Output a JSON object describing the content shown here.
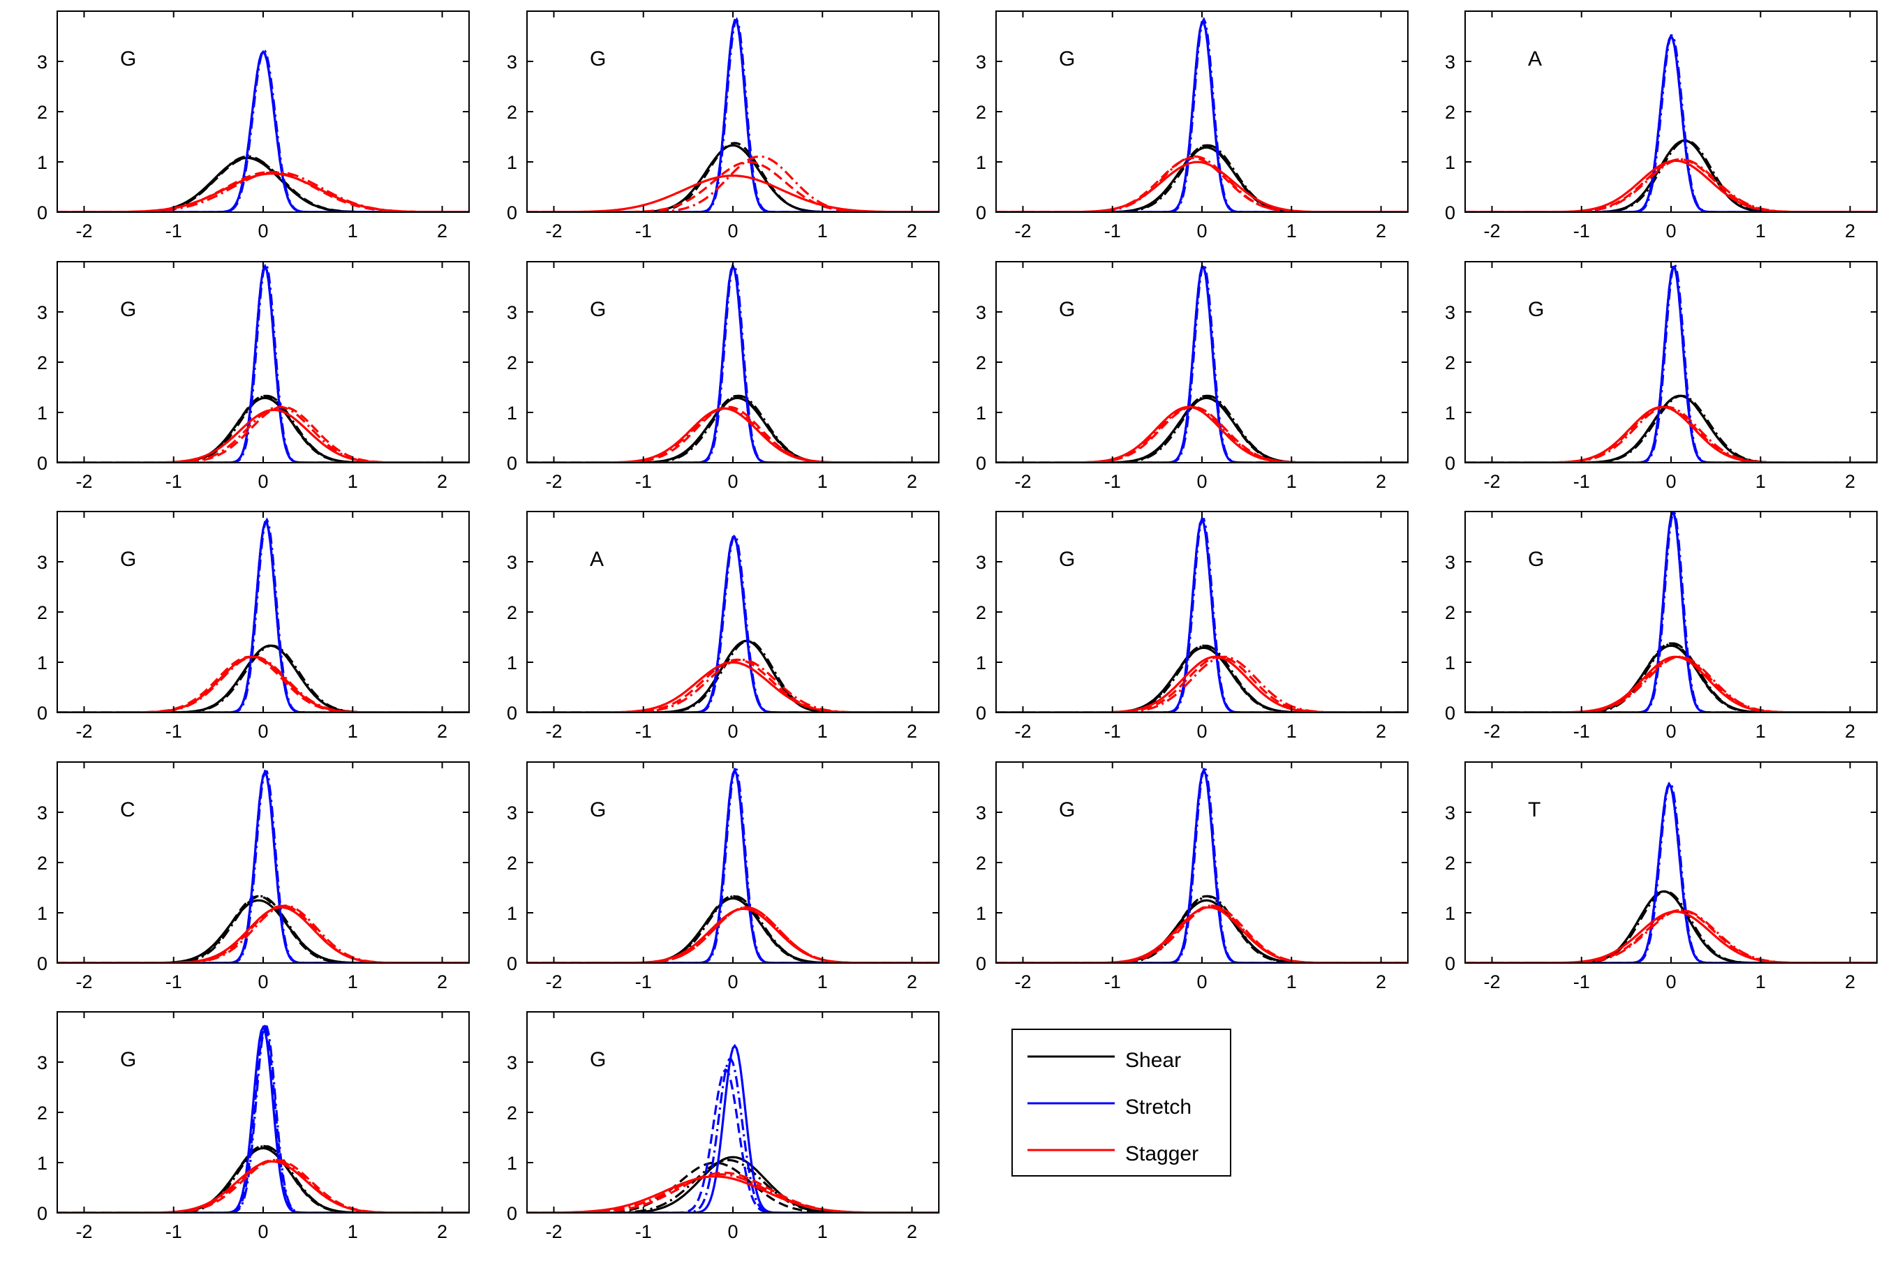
{
  "colors": {
    "shear": "#000000",
    "stretch": "#0000ff",
    "stagger": "#ff0000"
  },
  "legend": {
    "placement": "bottom-right",
    "entries": [
      {
        "label": "Shear",
        "color": "#000000"
      },
      {
        "label": "Stretch",
        "color": "#0000ff"
      },
      {
        "label": "Stagger",
        "color": "#ff0000"
      }
    ]
  },
  "axes": {
    "xlim": [
      -2.3,
      2.3
    ],
    "ylim": [
      0,
      4
    ],
    "xticks": [
      "-2",
      "-1",
      "0",
      "1",
      "2"
    ],
    "yticks": [
      "0",
      "1",
      "2",
      "3"
    ],
    "grid": false,
    "line_styles": [
      "solid",
      "dashed",
      "dash-dot"
    ]
  },
  "chart_data": [
    {
      "type": "line",
      "label": "G",
      "series": [
        {
          "name": "Shear",
          "mu": [
            -0.18,
            -0.16,
            -0.17
          ],
          "sigma": [
            0.37,
            0.37,
            0.36
          ]
        },
        {
          "name": "Stretch",
          "mu": [
            0.0,
            0.0,
            0.01
          ],
          "sigma": [
            0.125,
            0.125,
            0.124
          ]
        },
        {
          "name": "Stagger",
          "mu": [
            0.1,
            0.08,
            0.15
          ],
          "sigma": [
            0.52,
            0.5,
            0.5
          ]
        }
      ]
    },
    {
      "type": "line",
      "label": "G",
      "series": [
        {
          "name": "Shear",
          "mu": [
            0.0,
            0.02,
            0.0
          ],
          "sigma": [
            0.3,
            0.29,
            0.3
          ]
        },
        {
          "name": "Stretch",
          "mu": [
            0.03,
            0.03,
            0.04
          ],
          "sigma": [
            0.104,
            0.104,
            0.104
          ]
        },
        {
          "name": "Stagger",
          "mu": [
            0.0,
            0.18,
            0.3
          ],
          "sigma": [
            0.55,
            0.4,
            0.36
          ]
        }
      ]
    },
    {
      "type": "line",
      "label": "G",
      "series": [
        {
          "name": "Shear",
          "mu": [
            0.05,
            0.05,
            0.07
          ],
          "sigma": [
            0.31,
            0.3,
            0.3
          ]
        },
        {
          "name": "Stretch",
          "mu": [
            0.01,
            0.01,
            0.02
          ],
          "sigma": [
            0.105,
            0.105,
            0.104
          ]
        },
        {
          "name": "Stagger",
          "mu": [
            -0.05,
            -0.1,
            -0.08
          ],
          "sigma": [
            0.4,
            0.37,
            0.36
          ]
        }
      ]
    },
    {
      "type": "line",
      "label": "A",
      "series": [
        {
          "name": "Shear",
          "mu": [
            0.15,
            0.15,
            0.17
          ],
          "sigma": [
            0.28,
            0.28,
            0.28
          ]
        },
        {
          "name": "Stretch",
          "mu": [
            0.0,
            0.0,
            0.01
          ],
          "sigma": [
            0.114,
            0.114,
            0.113
          ]
        },
        {
          "name": "Stagger",
          "mu": [
            0.05,
            0.1,
            0.12
          ],
          "sigma": [
            0.39,
            0.38,
            0.38
          ]
        }
      ]
    },
    {
      "type": "line",
      "label": "G",
      "series": [
        {
          "name": "Shear",
          "mu": [
            0.02,
            0.02,
            0.04
          ],
          "sigma": [
            0.31,
            0.3,
            0.3
          ]
        },
        {
          "name": "Stretch",
          "mu": [
            0.02,
            0.02,
            0.03
          ],
          "sigma": [
            0.102,
            0.102,
            0.101
          ]
        },
        {
          "name": "Stagger",
          "mu": [
            0.12,
            0.22,
            0.18
          ],
          "sigma": [
            0.38,
            0.36,
            0.36
          ]
        }
      ]
    },
    {
      "type": "line",
      "label": "G",
      "series": [
        {
          "name": "Shear",
          "mu": [
            0.05,
            0.05,
            0.07
          ],
          "sigma": [
            0.31,
            0.3,
            0.3
          ]
        },
        {
          "name": "Stretch",
          "mu": [
            0.0,
            0.0,
            0.01
          ],
          "sigma": [
            0.102,
            0.102,
            0.101
          ]
        },
        {
          "name": "Stagger",
          "mu": [
            -0.1,
            -0.05,
            -0.08
          ],
          "sigma": [
            0.37,
            0.36,
            0.37
          ]
        }
      ]
    },
    {
      "type": "line",
      "label": "G",
      "series": [
        {
          "name": "Shear",
          "mu": [
            0.05,
            0.05,
            0.07
          ],
          "sigma": [
            0.31,
            0.3,
            0.3
          ]
        },
        {
          "name": "Stretch",
          "mu": [
            0.01,
            0.01,
            0.02
          ],
          "sigma": [
            0.102,
            0.102,
            0.101
          ]
        },
        {
          "name": "Stagger",
          "mu": [
            -0.15,
            -0.1,
            -0.12
          ],
          "sigma": [
            0.36,
            0.36,
            0.36
          ]
        }
      ]
    },
    {
      "type": "line",
      "label": "G",
      "series": [
        {
          "name": "Shear",
          "mu": [
            0.1,
            0.1,
            0.12
          ],
          "sigma": [
            0.3,
            0.3,
            0.3
          ]
        },
        {
          "name": "Stretch",
          "mu": [
            0.03,
            0.03,
            0.04
          ],
          "sigma": [
            0.102,
            0.102,
            0.101
          ]
        },
        {
          "name": "Stagger",
          "mu": [
            -0.1,
            -0.08,
            -0.05
          ],
          "sigma": [
            0.36,
            0.36,
            0.36
          ]
        }
      ]
    },
    {
      "type": "line",
      "label": "G",
      "series": [
        {
          "name": "Shear",
          "mu": [
            0.08,
            0.08,
            0.1
          ],
          "sigma": [
            0.3,
            0.3,
            0.3
          ]
        },
        {
          "name": "Stretch",
          "mu": [
            0.03,
            0.03,
            0.04
          ],
          "sigma": [
            0.105,
            0.105,
            0.104
          ]
        },
        {
          "name": "Stagger",
          "mu": [
            -0.12,
            -0.15,
            -0.1
          ],
          "sigma": [
            0.36,
            0.36,
            0.36
          ]
        }
      ]
    },
    {
      "type": "line",
      "label": "A",
      "series": [
        {
          "name": "Shear",
          "mu": [
            0.15,
            0.15,
            0.17
          ],
          "sigma": [
            0.28,
            0.28,
            0.28
          ]
        },
        {
          "name": "Stretch",
          "mu": [
            0.01,
            0.01,
            0.02
          ],
          "sigma": [
            0.114,
            0.114,
            0.113
          ]
        },
        {
          "name": "Stagger",
          "mu": [
            0.0,
            0.05,
            0.1
          ],
          "sigma": [
            0.4,
            0.38,
            0.38
          ]
        }
      ]
    },
    {
      "type": "line",
      "label": "G",
      "series": [
        {
          "name": "Shear",
          "mu": [
            0.02,
            0.02,
            0.04
          ],
          "sigma": [
            0.31,
            0.3,
            0.3
          ]
        },
        {
          "name": "Stretch",
          "mu": [
            0.0,
            0.0,
            0.01
          ],
          "sigma": [
            0.104,
            0.104,
            0.103
          ]
        },
        {
          "name": "Stagger",
          "mu": [
            0.15,
            0.2,
            0.25
          ],
          "sigma": [
            0.36,
            0.36,
            0.36
          ]
        }
      ]
    },
    {
      "type": "line",
      "label": "G",
      "series": [
        {
          "name": "Shear",
          "mu": [
            0.0,
            0.0,
            0.02
          ],
          "sigma": [
            0.3,
            0.29,
            0.29
          ]
        },
        {
          "name": "Stretch",
          "mu": [
            0.02,
            0.02,
            0.03
          ],
          "sigma": [
            0.1,
            0.1,
            0.1
          ]
        },
        {
          "name": "Stagger",
          "mu": [
            0.05,
            0.08,
            0.1
          ],
          "sigma": [
            0.36,
            0.36,
            0.36
          ]
        }
      ]
    },
    {
      "type": "line",
      "label": "C",
      "series": [
        {
          "name": "Shear",
          "mu": [
            -0.05,
            -0.05,
            -0.03
          ],
          "sigma": [
            0.32,
            0.3,
            0.3
          ]
        },
        {
          "name": "Stretch",
          "mu": [
            0.02,
            0.02,
            0.03
          ],
          "sigma": [
            0.105,
            0.105,
            0.104
          ]
        },
        {
          "name": "Stagger",
          "mu": [
            0.2,
            0.22,
            0.25
          ],
          "sigma": [
            0.36,
            0.35,
            0.35
          ]
        }
      ]
    },
    {
      "type": "line",
      "label": "G",
      "series": [
        {
          "name": "Shear",
          "mu": [
            0.0,
            0.0,
            0.02
          ],
          "sigma": [
            0.31,
            0.3,
            0.3
          ]
        },
        {
          "name": "Stretch",
          "mu": [
            0.02,
            0.02,
            0.03
          ],
          "sigma": [
            0.104,
            0.104,
            0.103
          ]
        },
        {
          "name": "Stagger",
          "mu": [
            0.12,
            0.15,
            0.15
          ],
          "sigma": [
            0.37,
            0.36,
            0.36
          ]
        }
      ]
    },
    {
      "type": "line",
      "label": "G",
      "series": [
        {
          "name": "Shear",
          "mu": [
            0.05,
            0.05,
            0.07
          ],
          "sigma": [
            0.32,
            0.3,
            0.3
          ]
        },
        {
          "name": "Stretch",
          "mu": [
            0.02,
            0.02,
            0.03
          ],
          "sigma": [
            0.104,
            0.104,
            0.103
          ]
        },
        {
          "name": "Stagger",
          "mu": [
            0.08,
            0.12,
            0.1
          ],
          "sigma": [
            0.36,
            0.35,
            0.35
          ]
        }
      ]
    },
    {
      "type": "line",
      "label": "T",
      "series": [
        {
          "name": "Shear",
          "mu": [
            -0.08,
            -0.08,
            -0.06
          ],
          "sigma": [
            0.28,
            0.28,
            0.28
          ]
        },
        {
          "name": "Stretch",
          "mu": [
            -0.02,
            -0.02,
            -0.01
          ],
          "sigma": [
            0.112,
            0.112,
            0.111
          ]
        },
        {
          "name": "Stagger",
          "mu": [
            0.05,
            0.1,
            0.12
          ],
          "sigma": [
            0.39,
            0.38,
            0.38
          ]
        }
      ]
    },
    {
      "type": "line",
      "label": "G",
      "series": [
        {
          "name": "Shear",
          "mu": [
            0.0,
            0.0,
            0.02
          ],
          "sigma": [
            0.31,
            0.3,
            0.3
          ]
        },
        {
          "name": "Stretch",
          "mu": [
            0.0,
            0.02,
            0.03
          ],
          "sigma": [
            0.108,
            0.108,
            0.107
          ]
        },
        {
          "name": "Stagger",
          "mu": [
            0.1,
            0.15,
            0.12
          ],
          "sigma": [
            0.39,
            0.38,
            0.38
          ]
        }
      ]
    },
    {
      "type": "line",
      "label": "G",
      "series": [
        {
          "name": "Shear",
          "mu": [
            0.0,
            -0.2,
            -0.05
          ],
          "sigma": [
            0.36,
            0.4,
            0.38
          ]
        },
        {
          "name": "Stretch",
          "mu": [
            0.02,
            -0.08,
            -0.03
          ],
          "sigma": [
            0.12,
            0.14,
            0.13
          ]
        },
        {
          "name": "Stagger",
          "mu": [
            -0.2,
            -0.1,
            -0.15
          ],
          "sigma": [
            0.55,
            0.5,
            0.52
          ]
        }
      ]
    }
  ]
}
